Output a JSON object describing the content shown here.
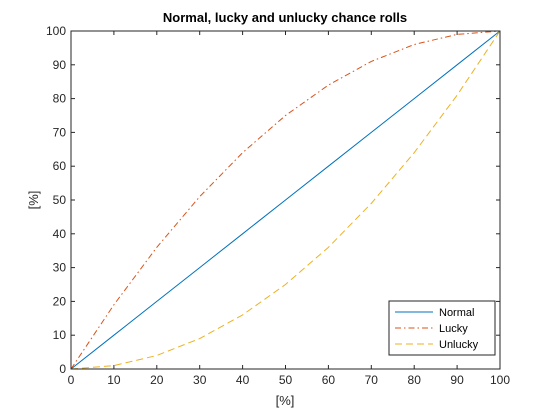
{
  "chart_data": {
    "type": "line",
    "title": "Normal, lucky and unlucky chance rolls",
    "xlabel": "[%]",
    "ylabel": "[%]",
    "xlim": [
      0,
      100
    ],
    "ylim": [
      0,
      100
    ],
    "xticks": [
      0,
      10,
      20,
      30,
      40,
      50,
      60,
      70,
      80,
      90,
      100
    ],
    "yticks": [
      0,
      10,
      20,
      30,
      40,
      50,
      60,
      70,
      80,
      90,
      100
    ],
    "grid": false,
    "legend_position": "bottom-right",
    "x": [
      0,
      10,
      20,
      30,
      40,
      50,
      60,
      70,
      80,
      90,
      100
    ],
    "series": [
      {
        "name": "Normal",
        "color": "#0072bd",
        "dash": "solid",
        "values": [
          0,
          10,
          20,
          30,
          40,
          50,
          60,
          70,
          80,
          90,
          100
        ]
      },
      {
        "name": "Lucky",
        "color": "#d95319",
        "dash": "dashdot",
        "values": [
          0,
          19,
          36,
          51,
          64,
          75,
          84,
          91,
          96,
          99,
          100
        ]
      },
      {
        "name": "Unlucky",
        "color": "#edb120",
        "dash": "dashed",
        "values": [
          0,
          1,
          4,
          9,
          16,
          25,
          36,
          49,
          64,
          81,
          100
        ]
      }
    ]
  }
}
